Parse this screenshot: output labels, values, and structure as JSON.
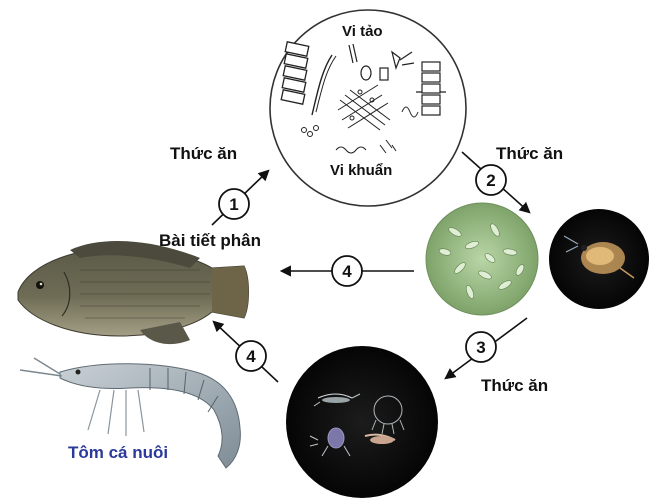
{
  "labels": {
    "microalgae": "Vi tảo",
    "bacteria": "Vi khuẩn",
    "food_1": "Thức ăn",
    "food_2": "Thức ăn",
    "food_3": "Thức ăn",
    "excretion": "Bài tiết phân",
    "farmed_animals": "Tôm cá nuôi"
  },
  "steps": {
    "step_1": "1",
    "step_2": "2",
    "step_3": "3",
    "step_4a": "4",
    "step_4b": "4"
  },
  "colors": {
    "farmed_animals_label": "#2b3a9a",
    "arrow": "#111111",
    "algae_green": "#8fb77a",
    "dark_bg": "#0a0a0a"
  },
  "icons": {
    "fish": "tilapia-fish-icon",
    "shrimp": "shrimp-icon",
    "plankton": "phytoplankton-icon",
    "daphnia": "daphnia-icon",
    "zooplankton": "zooplankton-icon"
  }
}
